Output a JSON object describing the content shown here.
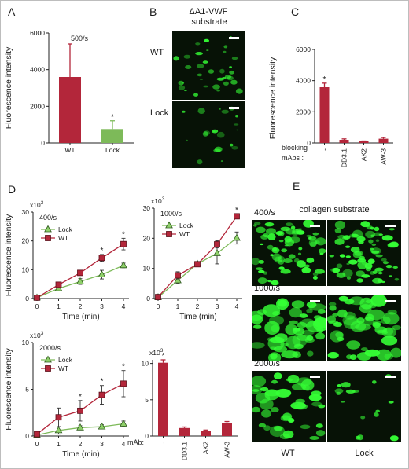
{
  "panel_letters": {
    "a": "A",
    "b": "B",
    "c": "C",
    "d": "D",
    "e": "E"
  },
  "colors": {
    "wt": "#b3263a",
    "lock": "#7dba59",
    "lock_marker": "#8fd06a",
    "title_red": "#c0283f",
    "micro_bg": "#071206",
    "micro_green": "#35ff35"
  },
  "panel_b": {
    "title_line1": "ΔA1-VWF",
    "title_line2": "substrate",
    "row_labels": [
      "WT",
      "Lock"
    ]
  },
  "panel_e": {
    "title": "collagen substrate",
    "row_labels": [
      "400/s",
      "1000/s",
      "2000/s"
    ],
    "col_labels": [
      "WT",
      "Lock"
    ]
  },
  "chart_data": [
    {
      "id": "A",
      "type": "bar",
      "annotation": "500/s",
      "ylabel": "Fluorescence intensity",
      "ylim": [
        0,
        6000
      ],
      "yticks": [
        0,
        2000,
        4000,
        6000
      ],
      "categories": [
        "WT",
        "Lock"
      ],
      "values": [
        3600,
        760
      ],
      "errors": [
        1800,
        450
      ],
      "significance": [
        "",
        "*"
      ]
    },
    {
      "id": "C",
      "type": "bar",
      "ylabel": "Fluorescence intensity",
      "ylim": [
        0,
        6000
      ],
      "yticks": [
        0,
        2000,
        4000,
        6000
      ],
      "x_prefix": "blocking mAbs :",
      "categories": [
        "-",
        "DD3.1",
        "AK2",
        "AW-3"
      ],
      "values": [
        3580,
        200,
        100,
        270
      ],
      "errors": [
        260,
        60,
        25,
        80
      ],
      "significance": [
        "*",
        "",
        "",
        ""
      ]
    },
    {
      "id": "D1",
      "type": "line",
      "annotation": "400/s",
      "multiplier": "x10",
      "multiplier_exp": "3",
      "ylabel": "Fluorescence intensity",
      "xlabel": "Time (min)",
      "ylim": [
        0,
        30
      ],
      "yticks": [
        0,
        10,
        20,
        30
      ],
      "x": [
        0,
        1,
        2,
        3,
        4
      ],
      "series": [
        {
          "name": "Lock",
          "values": [
            0.3,
            3.5,
            5.9,
            8.3,
            11.5
          ],
          "errors": [
            0,
            0.8,
            1.0,
            1.5,
            0.8
          ]
        },
        {
          "name": "WT",
          "values": [
            0.3,
            4.8,
            8.9,
            14.1,
            18.9
          ],
          "errors": [
            0,
            0.7,
            0.8,
            1.2,
            2.0
          ]
        }
      ],
      "significance_x": [
        3,
        4
      ],
      "legend_position": "top-left"
    },
    {
      "id": "D2",
      "type": "line",
      "annotation": "1000/s",
      "multiplier": "x10",
      "multiplier_exp": "3",
      "xlabel": "Time (min)",
      "ylim": [
        0,
        30
      ],
      "yticks": [
        0,
        10,
        20,
        30
      ],
      "x": [
        0,
        1,
        2,
        3,
        4
      ],
      "series": [
        {
          "name": "Lock",
          "values": [
            0.4,
            6.0,
            11.5,
            15.0,
            20.1
          ],
          "errors": [
            0,
            1.0,
            0.5,
            3.5,
            2.0
          ]
        },
        {
          "name": "WT",
          "values": [
            0.5,
            7.7,
            11.4,
            18.0,
            27.3
          ],
          "errors": [
            0,
            1.2,
            0.6,
            1.2,
            0.7
          ]
        }
      ],
      "significance_x": [
        4
      ],
      "legend_position": "top-left"
    },
    {
      "id": "D3",
      "type": "line",
      "annotation": "2000/s",
      "multiplier": "x10",
      "multiplier_exp": "3",
      "ylabel": "Fluorescence intensity",
      "xlabel": "Time (min)",
      "ylim": [
        0,
        10
      ],
      "yticks": [
        0,
        5,
        10
      ],
      "x": [
        0,
        1,
        2,
        3,
        4
      ],
      "series": [
        {
          "name": "Lock",
          "values": [
            0.1,
            0.6,
            0.9,
            1.0,
            1.3
          ],
          "errors": [
            0,
            0.4,
            0.2,
            0.2,
            0.3
          ]
        },
        {
          "name": "WT",
          "values": [
            0.2,
            2.0,
            2.7,
            4.4,
            5.6
          ],
          "errors": [
            0,
            1.0,
            1.1,
            1.0,
            1.4
          ]
        }
      ],
      "significance_x": [
        2,
        3,
        4
      ],
      "legend_position": "top-left"
    },
    {
      "id": "D4",
      "type": "bar",
      "multiplier": "x10",
      "multiplier_exp": "3",
      "ylim": [
        0,
        10.5
      ],
      "yticks": [
        0,
        5,
        10
      ],
      "x_prefix": "mAb:",
      "categories": [
        "-",
        "DD3.1",
        "AK2",
        "AW-3"
      ],
      "values": [
        10.1,
        1.1,
        0.75,
        1.8
      ],
      "errors": [
        0.4,
        0.15,
        0.08,
        0.2
      ],
      "significance": [
        "*",
        "",
        "",
        ""
      ]
    }
  ]
}
